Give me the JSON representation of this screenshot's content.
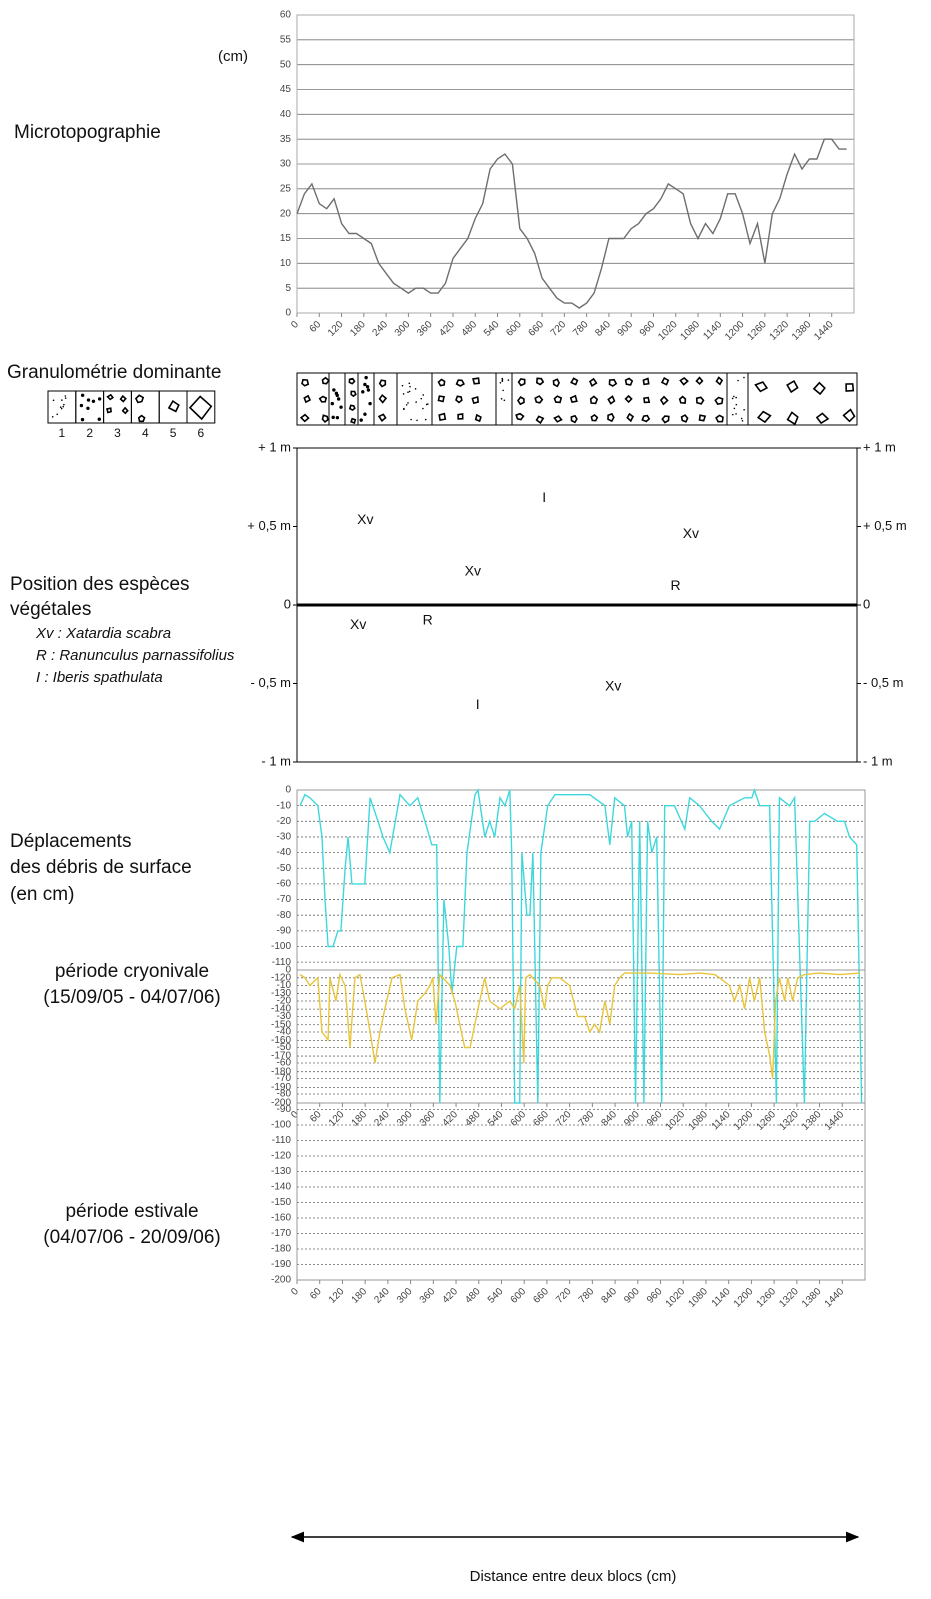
{
  "chart_data": [
    {
      "type": "line",
      "title": "Microtopographie",
      "ylabel": "(cm)",
      "x": [
        0,
        20,
        40,
        60,
        80,
        100,
        120,
        140,
        160,
        180,
        200,
        220,
        240,
        260,
        280,
        300,
        320,
        340,
        360,
        380,
        400,
        420,
        440,
        460,
        480,
        500,
        520,
        540,
        560,
        580,
        600,
        620,
        640,
        660,
        680,
        700,
        720,
        740,
        760,
        780,
        800,
        820,
        840,
        860,
        880,
        900,
        920,
        940,
        960,
        980,
        1000,
        1020,
        1040,
        1060,
        1080,
        1100,
        1120,
        1140,
        1160,
        1180,
        1200,
        1220,
        1240,
        1260,
        1280,
        1300,
        1320,
        1340,
        1360,
        1380,
        1400,
        1420,
        1440,
        1460,
        1480
      ],
      "series": [
        {
          "color": "#6e6e6e",
          "values": [
            20,
            24,
            26,
            22,
            21,
            23,
            18,
            16,
            16,
            15,
            14,
            10,
            8,
            6,
            5,
            4,
            5,
            5,
            4,
            4,
            6,
            11,
            13,
            15,
            19,
            22,
            29,
            31,
            32,
            30,
            17,
            15,
            12,
            7,
            5,
            3,
            2,
            2,
            1,
            2,
            4,
            9,
            15,
            15,
            15,
            17,
            18,
            20,
            21,
            23,
            26,
            25,
            24,
            18,
            15,
            18,
            16,
            19,
            24,
            24,
            20,
            14,
            18,
            10,
            20,
            23,
            28,
            32,
            29,
            31,
            31,
            35,
            35,
            33,
            33
          ]
        }
      ],
      "xlim": [
        0,
        1500
      ],
      "xticks": [
        0,
        60,
        120,
        180,
        240,
        300,
        360,
        420,
        480,
        540,
        600,
        660,
        720,
        780,
        840,
        900,
        960,
        1020,
        1080,
        1140,
        1200,
        1260,
        1320,
        1380,
        1440
      ],
      "ylim": [
        0,
        60
      ],
      "yticks": [
        0,
        5,
        10,
        15,
        20,
        25,
        30,
        35,
        40,
        45,
        50,
        55,
        60
      ],
      "grid": "solid"
    },
    {
      "type": "scatter",
      "title": [
        "Position des espèces",
        "végétales"
      ],
      "xlim": [
        0,
        1500
      ],
      "ylim": [
        -1,
        1
      ],
      "yticks": [
        {
          "value": 1,
          "label": "+ 1 m"
        },
        {
          "value": 0.5,
          "label": "+ 0,5 m"
        },
        0,
        {
          "value": -0.5,
          "label": "- 0,5 m"
        },
        {
          "value": -1,
          "label": "- 1 m"
        }
      ],
      "zero_line": true,
      "series": [
        {
          "name": "Xv : Xatardia scabra",
          "symbol": "Xv",
          "x": [
            183,
            471,
            1055,
            164,
            847
          ],
          "values": [
            0.54,
            0.21,
            0.45,
            -0.13,
            -0.52
          ]
        },
        {
          "name": "R : Ranunculus parnassifolius",
          "symbol": "R",
          "x": [
            1014,
            350
          ],
          "values": [
            0.12,
            -0.1
          ]
        },
        {
          "name": "I : Iberis spathulata",
          "symbol": "I",
          "x": [
            662,
            484
          ],
          "values": [
            0.68,
            -0.64
          ]
        }
      ]
    },
    {
      "type": "line",
      "title": [
        "Déplacements",
        "des débris de surface",
        "(en cm)"
      ],
      "subtitle": [
        "période cryonivale",
        "(15/09/05 - 04/07/06)"
      ],
      "x": [
        8,
        21,
        34,
        55,
        66,
        74,
        82,
        95,
        108,
        116,
        127,
        135,
        145,
        179,
        193,
        214,
        227,
        245,
        272,
        298,
        319,
        338,
        356,
        369,
        377,
        388,
        401,
        409,
        422,
        438,
        449,
        470,
        478,
        496,
        509,
        522,
        536,
        549,
        562,
        567,
        575,
        588,
        594,
        607,
        615,
        623,
        636,
        644,
        662,
        681,
        773,
        813,
        826,
        839,
        865,
        873,
        884,
        894,
        905,
        916,
        926,
        937,
        950,
        963,
        971,
        997,
        1024,
        1037,
        1063,
        1095,
        1116,
        1142,
        1182,
        1201,
        1208,
        1222,
        1248,
        1266,
        1274,
        1301,
        1314,
        1340,
        1354,
        1367,
        1393,
        1427,
        1446,
        1459,
        1478,
        1491
      ],
      "series": [
        {
          "color": "#3ed8dc",
          "values": [
            -10,
            -3,
            -5,
            -10,
            -30,
            -70,
            -100,
            -100,
            -90,
            -90,
            -50,
            -30,
            -60,
            -60,
            -5,
            -20,
            -30,
            -40,
            -3,
            -10,
            -5,
            -20,
            -35,
            -35,
            -200,
            -70,
            -100,
            -130,
            -100,
            -100,
            -40,
            -3,
            0,
            -30,
            -20,
            -30,
            -5,
            -10,
            0,
            -40,
            -200,
            -200,
            -40,
            -80,
            -80,
            -40,
            -200,
            -40,
            -10,
            -3,
            -3,
            -10,
            -35,
            -5,
            -10,
            -30,
            -20,
            -200,
            -20,
            -200,
            -20,
            -40,
            -30,
            -200,
            -10,
            -10,
            -25,
            -5,
            -10,
            -20,
            -25,
            -10,
            -5,
            -5,
            0,
            -10,
            -10,
            -200,
            -5,
            -10,
            -5,
            -200,
            -20,
            -20,
            -15,
            -20,
            -20,
            -30,
            -35,
            -200
          ]
        }
      ],
      "xlim": [
        0,
        1500
      ],
      "xticks": [
        0,
        60,
        120,
        180,
        240,
        300,
        360,
        420,
        480,
        540,
        600,
        660,
        720,
        780,
        840,
        900,
        960,
        1020,
        1080,
        1140,
        1200,
        1260,
        1320,
        1380,
        1440
      ],
      "ylim": [
        -200,
        0
      ],
      "yticks": [
        0,
        -10,
        -20,
        -30,
        -40,
        -50,
        -60,
        -70,
        -80,
        -90,
        -100,
        -110,
        -120,
        -130,
        -140,
        -150,
        -160,
        -170,
        -180,
        -190,
        -200
      ],
      "grid": "dashed"
    },
    {
      "type": "line",
      "subtitle": [
        "période estivale",
        "(04/07/06 - 20/09/06)"
      ],
      "x": [
        8,
        21,
        34,
        55,
        66,
        82,
        87,
        103,
        113,
        127,
        140,
        153,
        166,
        179,
        193,
        206,
        219,
        232,
        251,
        272,
        285,
        303,
        319,
        338,
        351,
        359,
        367,
        377,
        404,
        417,
        430,
        443,
        457,
        478,
        496,
        509,
        536,
        562,
        575,
        588,
        599,
        604,
        615,
        641,
        654,
        662,
        673,
        694,
        720,
        741,
        760,
        773,
        786,
        799,
        813,
        826,
        839,
        852,
        865,
        931,
        1011,
        1063,
        1103,
        1116,
        1142,
        1155,
        1169,
        1182,
        1195,
        1208,
        1222,
        1235,
        1248,
        1256,
        1264,
        1274,
        1288,
        1296,
        1309,
        1322,
        1340,
        1380,
        1433,
        1486
      ],
      "series": [
        {
          "color": "#e8c53c",
          "values": [
            -3,
            -5,
            -10,
            -5,
            -40,
            -45,
            -5,
            -20,
            -3,
            -10,
            -50,
            -5,
            -3,
            -20,
            -40,
            -60,
            -40,
            -25,
            -5,
            -3,
            -25,
            -45,
            -20,
            -15,
            -10,
            -5,
            -35,
            -3,
            -10,
            -20,
            -35,
            -50,
            -50,
            -25,
            -5,
            -20,
            -25,
            -20,
            -25,
            -10,
            -60,
            -5,
            -3,
            -10,
            -25,
            -10,
            -5,
            -5,
            -10,
            -30,
            -30,
            -40,
            -35,
            -40,
            -20,
            -35,
            -10,
            -5,
            -2,
            -2,
            -3,
            -2,
            -3,
            -5,
            -10,
            -20,
            -10,
            -25,
            -5,
            -20,
            -5,
            -40,
            -55,
            -70,
            -20,
            -5,
            -20,
            -5,
            -20,
            -5,
            -3,
            -2,
            -3,
            -2
          ]
        }
      ],
      "xlim": [
        0,
        1500
      ],
      "xticks": [
        0,
        60,
        120,
        180,
        240,
        300,
        360,
        420,
        480,
        540,
        600,
        660,
        720,
        780,
        840,
        900,
        960,
        1020,
        1080,
        1140,
        1200,
        1260,
        1320,
        1380,
        1440
      ],
      "ylim": [
        -200,
        0
      ],
      "yticks": [
        0,
        -10,
        -20,
        -30,
        -40,
        -50,
        -60,
        -70,
        -80,
        -90,
        -100,
        -110,
        -120,
        -130,
        -140,
        -150,
        -160,
        -170,
        -180,
        -190,
        -200
      ],
      "grid": "dashed"
    }
  ],
  "granulometrie": {
    "title": "Granulométrie dominante",
    "classes": [
      "1",
      "2",
      "3",
      "4",
      "5",
      "6"
    ]
  },
  "x_axis_label": "Distance entre deux blocs (cm)"
}
